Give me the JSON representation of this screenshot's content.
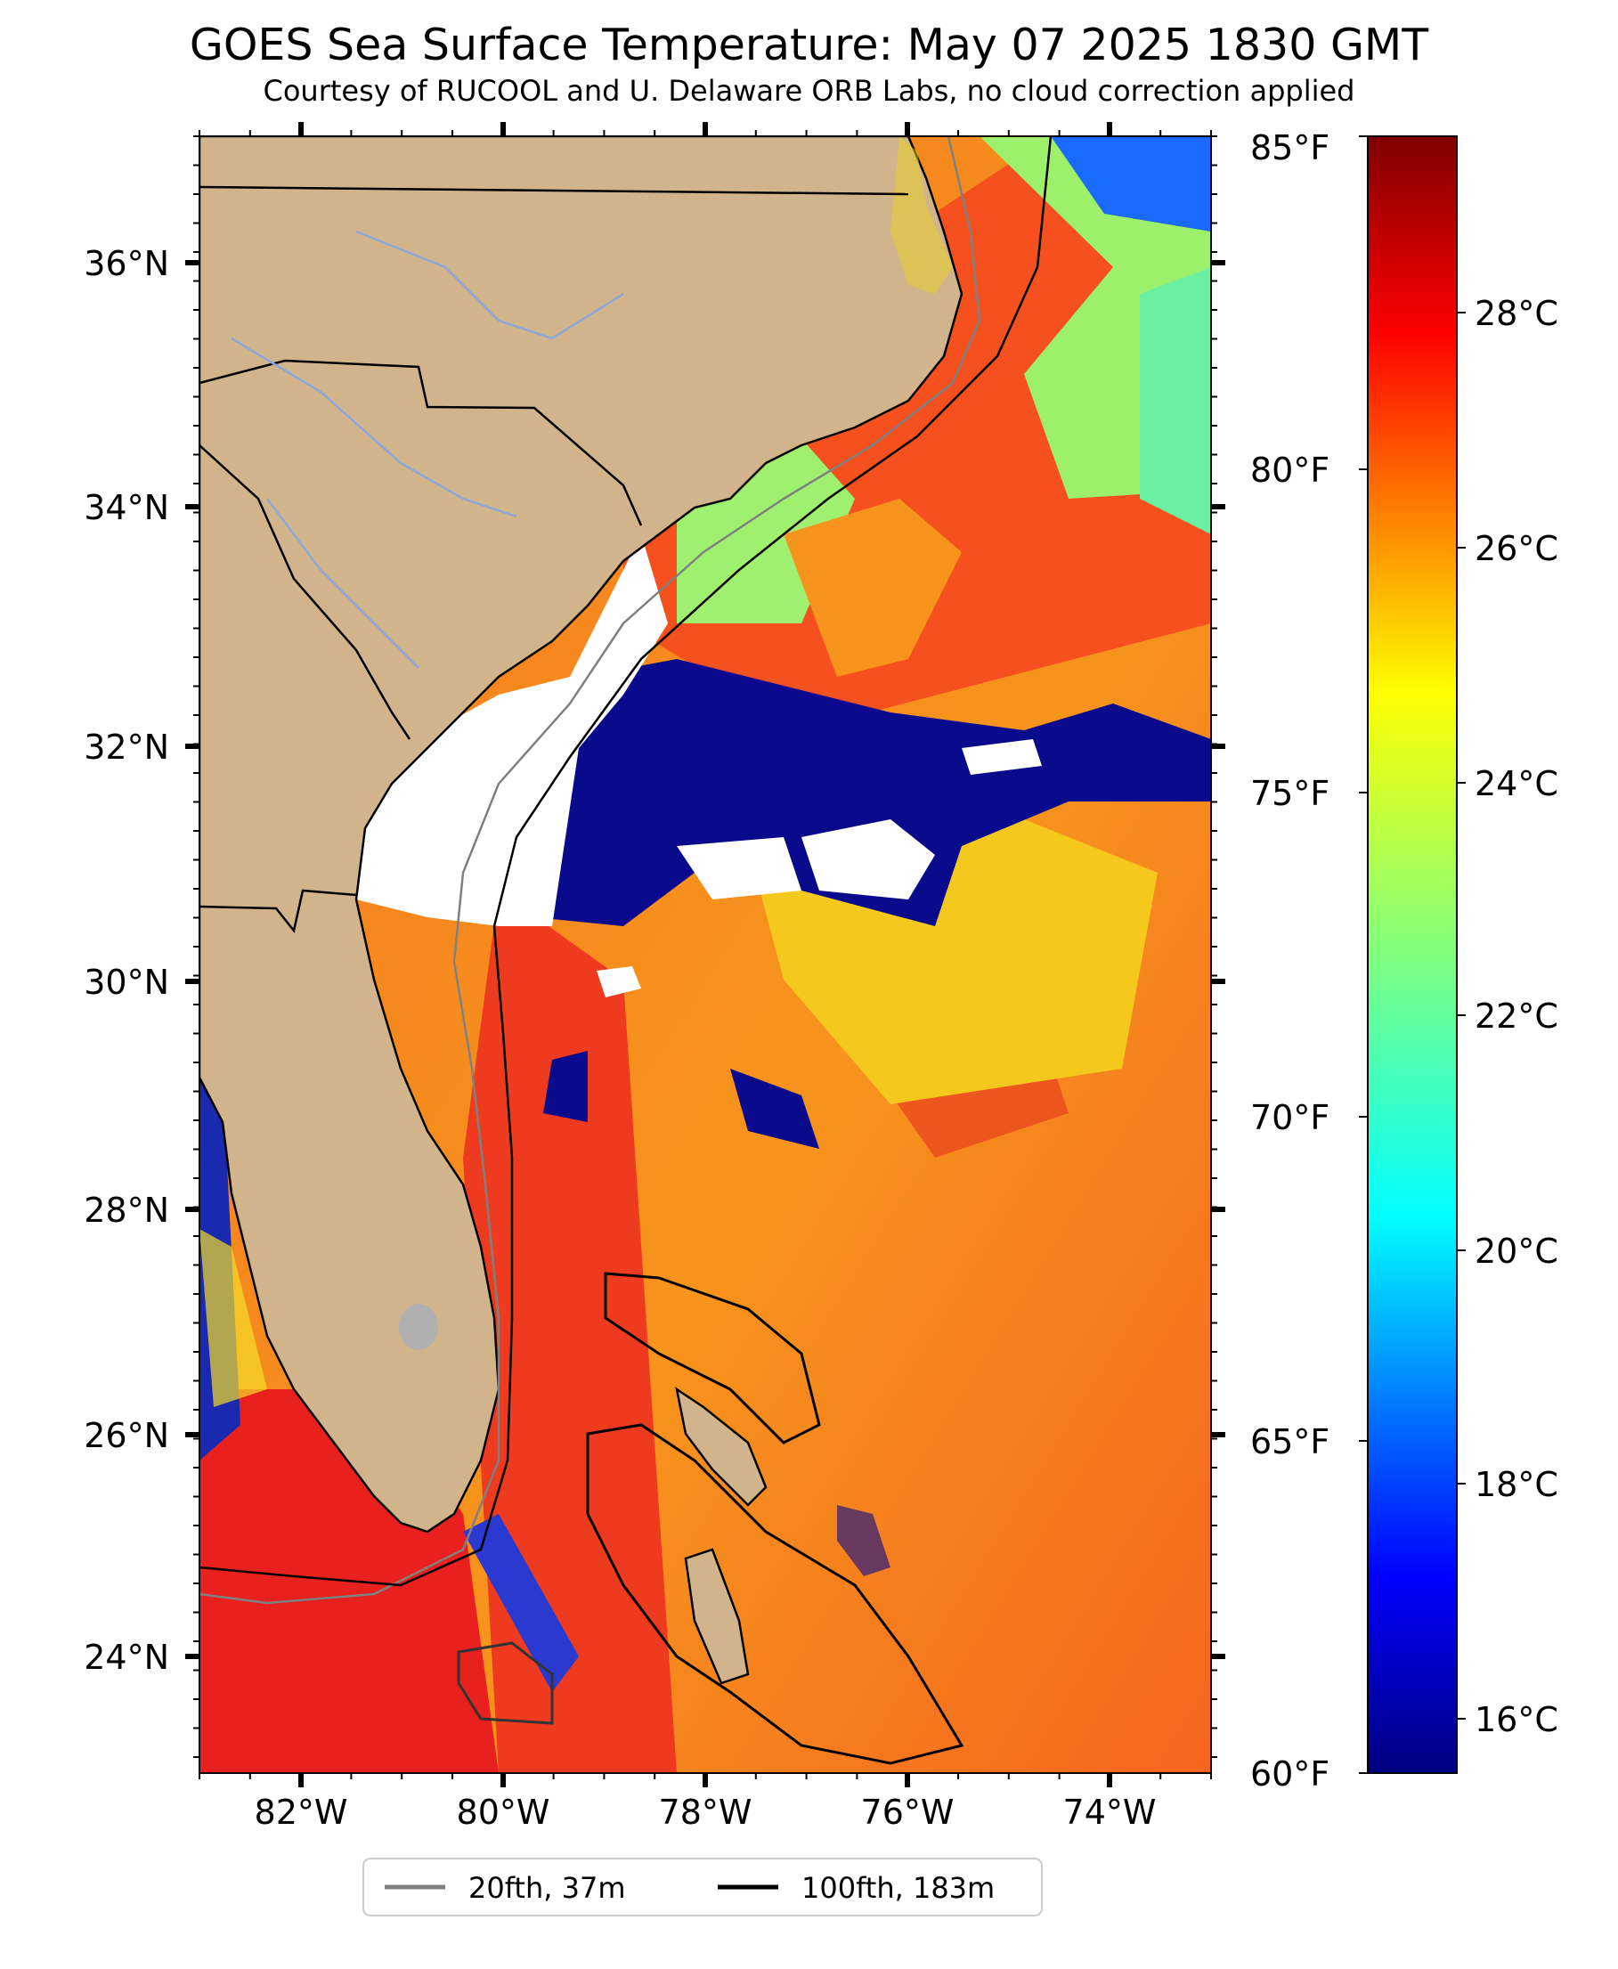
{
  "header": {
    "title": "GOES Sea Surface Temperature: May 07 2025 1830 GMT",
    "subtitle": "Courtesy of RUCOOL and U. Delaware ORB Labs, no cloud correction applied"
  },
  "map": {
    "lon_range": [
      -83,
      -73
    ],
    "lat_range": [
      23.1,
      37
    ],
    "lon_ticks": [
      "82°W",
      "80°W",
      "78°W",
      "76°W",
      "74°W"
    ],
    "lat_ticks": [
      "36°N",
      "34°N",
      "32°N",
      "30°N",
      "28°N",
      "26°N",
      "24°N"
    ],
    "colors": {
      "land": "#d2b48c",
      "cloud": "#ffffff",
      "warm_sea": "#f5501e",
      "cold_sea": "#0a0a8c"
    }
  },
  "colorbar": {
    "fahrenheit_labels": [
      "85°F",
      "80°F",
      "75°F",
      "70°F",
      "65°F",
      "60°F"
    ],
    "celsius_labels": [
      "28°C",
      "26°C",
      "24°C",
      "22°C",
      "20°C",
      "18°C",
      "16°C"
    ],
    "colormap": "jet"
  },
  "legend": {
    "items": [
      {
        "label": "20fth, 37m",
        "color": "#808080"
      },
      {
        "label": "100fth, 183m",
        "color": "#000000"
      }
    ]
  }
}
